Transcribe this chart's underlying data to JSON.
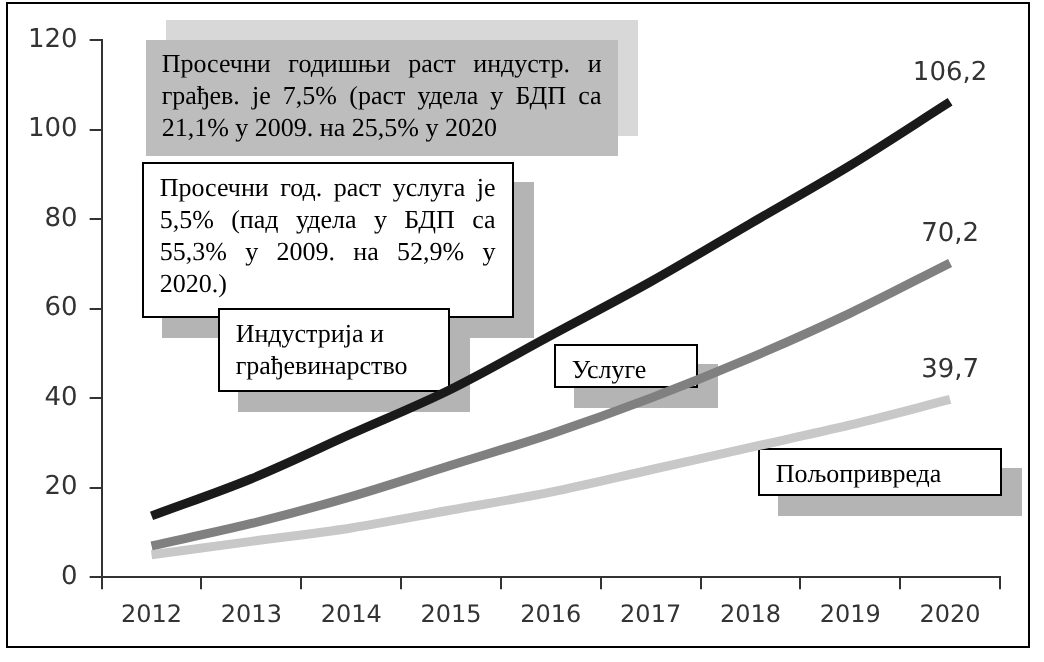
{
  "chart_data": {
    "type": "line",
    "categories": [
      "2012",
      "2013",
      "2014",
      "2015",
      "2016",
      "2017",
      "2018",
      "2019",
      "2020"
    ],
    "series": [
      {
        "name": "Индустрија и грађевинарство",
        "color": "#1a1a1a",
        "values": [
          13.7,
          22,
          32,
          42,
          54,
          66,
          79,
          92,
          106.2
        ],
        "value_labels": [
          null,
          null,
          null,
          null,
          null,
          null,
          null,
          null,
          "106,2"
        ]
      },
      {
        "name": "Услуге",
        "color": "#808080",
        "values": [
          7,
          12,
          18,
          25,
          32,
          40,
          49,
          59,
          70.2
        ],
        "value_labels": [
          null,
          null,
          null,
          null,
          null,
          null,
          null,
          null,
          "70,2"
        ]
      },
      {
        "name": "Пољопривреда",
        "color": "#c8c8c8",
        "values": [
          5,
          8,
          11,
          15,
          19,
          24,
          29,
          34,
          39.7
        ],
        "value_labels": [
          null,
          null,
          null,
          null,
          null,
          null,
          null,
          null,
          "39,7"
        ]
      }
    ],
    "ylim": [
      0,
      120
    ],
    "yticks": [
      0,
      20,
      40,
      60,
      80,
      100,
      120
    ],
    "annotations": [
      "Просечни годишњи раст индустр. и грађев. је 7,5% (раст удела у БДП са 21,1% у 2009. на 25,5% у 2020",
      "Просечни год. раст услуга је 5,5% (пад удела у БДП са 55,3% у 2009. на 52,9% у 2020.)"
    ],
    "legend": false,
    "marker": "none",
    "line_style": "solid"
  }
}
